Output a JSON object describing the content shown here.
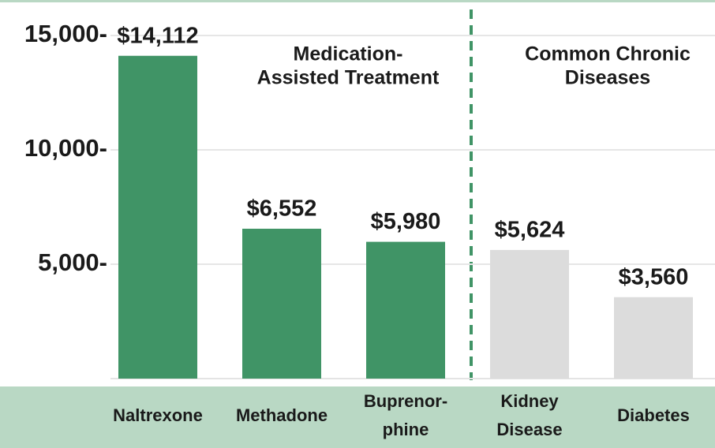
{
  "chart_data": {
    "type": "bar",
    "categories": [
      [
        "Naltrexone"
      ],
      [
        "Methadone"
      ],
      [
        "Buprenor-",
        "phine"
      ],
      [
        "Kidney",
        "Disease"
      ],
      [
        "Diabetes"
      ]
    ],
    "values": [
      14112,
      6552,
      5980,
      5624,
      3560
    ],
    "value_labels": [
      "$14,112",
      "$6,552",
      "$5,980",
      "$5,624",
      "$3,560"
    ],
    "colors": [
      "#409466",
      "#409466",
      "#409466",
      "#dcdcdc",
      "#dcdcdc"
    ],
    "ylim": [
      0,
      15000
    ],
    "yticks": [
      {
        "value": 5000,
        "label": "5,000-"
      },
      {
        "value": 10000,
        "label": "10,000-"
      },
      {
        "value": 15000,
        "label": "15,000-"
      }
    ],
    "grid": true,
    "annotations": [
      [
        "Medication-",
        "Assisted Treatment"
      ],
      [
        "Common Chronic",
        "Diseases"
      ]
    ]
  }
}
